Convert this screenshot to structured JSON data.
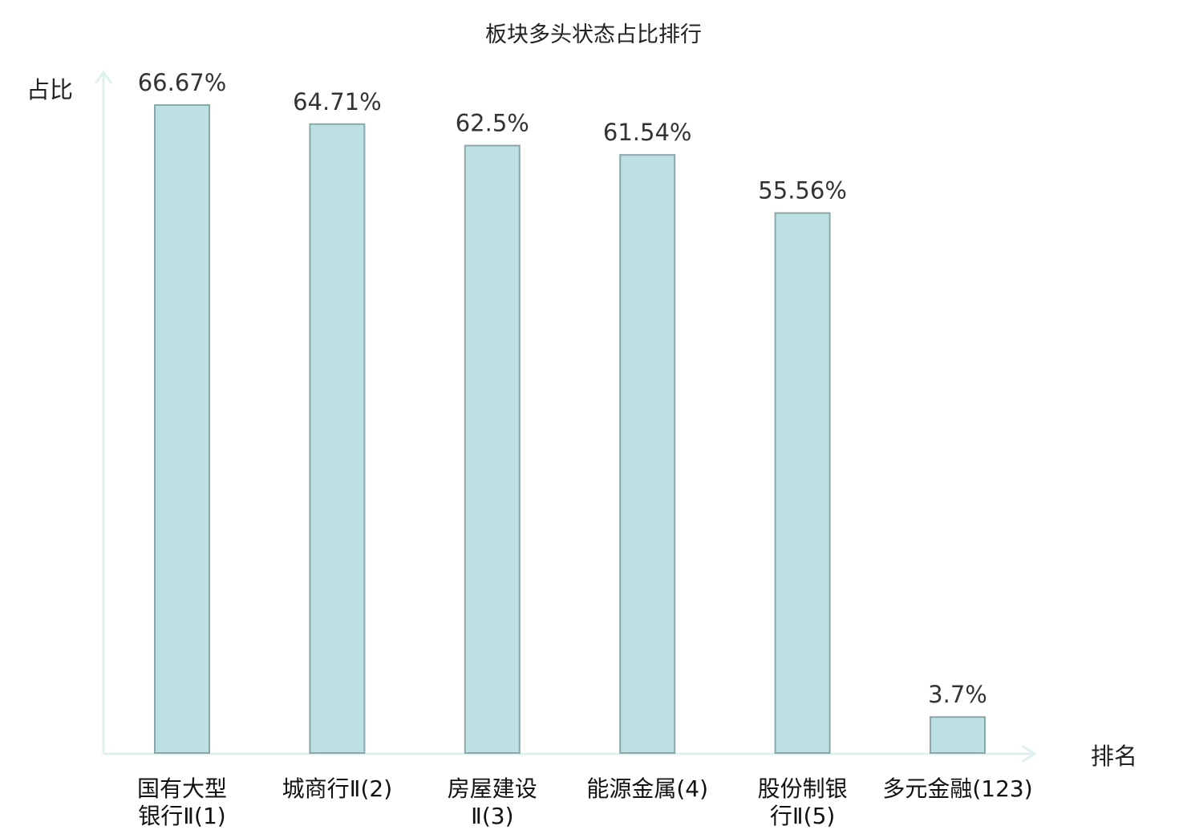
{
  "chart_data": {
    "type": "bar",
    "title": "板块多头状态占比排行",
    "ylabel": "占比",
    "xlabel": "排名",
    "ylim": [
      0,
      70
    ],
    "grid": false,
    "categories": [
      [
        "国有大型",
        "银行Ⅱ(1)"
      ],
      [
        "城商行Ⅱ(2)"
      ],
      [
        "房屋建设",
        "Ⅱ(3)"
      ],
      [
        "能源金属(4)"
      ],
      [
        "股份制银",
        "行Ⅱ(5)"
      ],
      [
        "多元金融(123)"
      ]
    ],
    "values": [
      66.67,
      64.71,
      62.5,
      61.54,
      55.56,
      3.7
    ],
    "value_labels": [
      "66.67%",
      "64.71%",
      "62.5%",
      "61.54%",
      "55.56%",
      "3.7%"
    ],
    "highlight_index": 5,
    "colors": {
      "bar_fill": "#bde0e3",
      "bar_stroke": "#8aa8aa",
      "axis": "#dff0ee",
      "highlight_text": "#e0201f",
      "text": "#111111"
    }
  }
}
